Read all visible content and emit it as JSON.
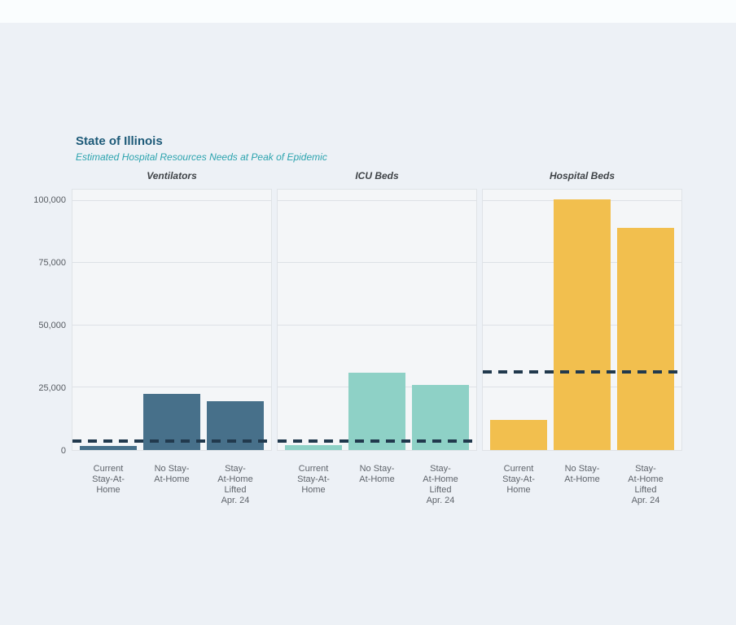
{
  "page": {
    "background_color": "#edf1f6",
    "top_strip_color": "#fafdfe"
  },
  "chart_data": {
    "type": "bar",
    "title": "State of Illinois",
    "subtitle": "Estimated Hospital Resources Needs at Peak of Epidemic",
    "title_color": "#1d5a78",
    "subtitle_color": "#2ba3ae",
    "ylim": [
      0,
      104500
    ],
    "yticks": [
      0,
      25000,
      50000,
      75000,
      100000
    ],
    "ytick_labels": [
      "0",
      "25,000",
      "50,000",
      "75,000",
      "100,000"
    ],
    "grid": true,
    "legend_position": "none",
    "categories": [
      [
        "Current",
        "Stay-At-",
        "Home"
      ],
      [
        "No Stay-",
        "At-Home"
      ],
      [
        "Stay-",
        "At-Home",
        "Lifted",
        "Apr. 24"
      ]
    ],
    "category_names": [
      "Current Stay-At-Home",
      "No Stay-At-Home",
      "Stay-At-Home Lifted Apr. 24"
    ],
    "capacity_line_color": "#21394d",
    "capacity_line_style": "dashed",
    "panels": [
      {
        "name": "Ventilators",
        "bar_color": "#47708a",
        "values": [
          1500,
          22500,
          19500
        ],
        "capacity_line": 3500
      },
      {
        "name": "ICU Beds",
        "bar_color": "#8ed1c6",
        "values": [
          2000,
          31000,
          26000
        ],
        "capacity_line": 3600
      },
      {
        "name": "Hospital Beds",
        "bar_color": "#f2bf4e",
        "values": [
          12000,
          100500,
          89000
        ],
        "capacity_line": 31300
      }
    ]
  }
}
